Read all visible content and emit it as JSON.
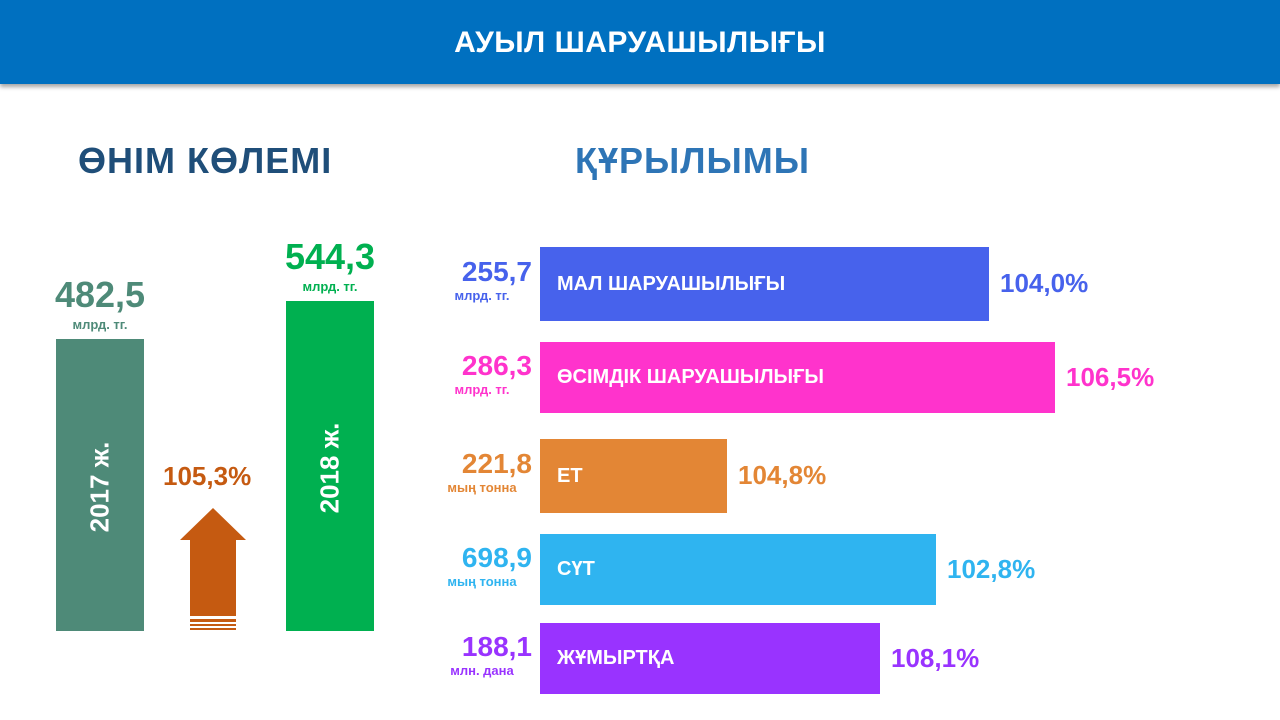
{
  "header": {
    "title": "АУЫЛ ШАРУАШЫЛЫҒЫ"
  },
  "volume": {
    "title": "ӨНІМ КӨЛЕМІ",
    "growth": "105,3%",
    "growth_color": "#c55a11",
    "bars": [
      {
        "year": "2017 ж.",
        "value": 482.5,
        "value_text": "482,5",
        "unit": "млрд. тг.",
        "color": "#4e8a78"
      },
      {
        "year": "2018 ж.",
        "value": 544.3,
        "value_text": "544,3",
        "unit": "млрд. тг.",
        "color": "#00b050"
      }
    ]
  },
  "structure": {
    "title": "ҚҰРЫЛЫМЫ",
    "rows": [
      {
        "label": "МАЛ ШАРУАШЫЛЫҒЫ",
        "value_text": "255,7",
        "unit": "млрд. тг.",
        "percent": "104,0%",
        "bar_fraction": 0.8716,
        "color": "#4762ec"
      },
      {
        "label": "ӨСІМДІК ШАРУАШЫЛЫҒЫ",
        "value_text": "286,3",
        "unit": "млрд. тг.",
        "percent": "106,5%",
        "bar_fraction": 1.0,
        "color": "#ff33cc"
      },
      {
        "label": "ЕТ",
        "value_text": "221,8",
        "unit": "мың тонна",
        "percent": "104,8%",
        "bar_fraction": 0.3623,
        "color": "#e38635"
      },
      {
        "label": "СҮТ",
        "value_text": "698,9",
        "unit": "мың тонна",
        "percent": "102,8%",
        "bar_fraction": 0.7685,
        "color": "#2fb4f0"
      },
      {
        "label": "ЖҰМЫРТҚА",
        "value_text": "188,1",
        "unit": "млн. дана",
        "percent": "108,1%",
        "bar_fraction": 0.6602,
        "color": "#9933ff"
      }
    ]
  },
  "chart_data": [
    {
      "type": "bar",
      "title": "ӨНІМ КӨЛЕМІ",
      "categories": [
        "2017 ж.",
        "2018 ж."
      ],
      "values": [
        482.5,
        544.3
      ],
      "unit": "млрд. тг.",
      "annotation": "105,3%"
    },
    {
      "type": "bar",
      "orientation": "horizontal",
      "title": "ҚҰРЫЛЫМЫ",
      "categories": [
        "МАЛ ШАРУАШЫЛЫҒЫ",
        "ӨСІМДІК ШАРУАШЫЛЫҒЫ",
        "ЕТ",
        "СҮТ",
        "ЖҰМЫРТҚА"
      ],
      "values": [
        255.7,
        286.3,
        221.8,
        698.9,
        188.1
      ],
      "units": [
        "млрд. тг.",
        "млрд. тг.",
        "мың тонна",
        "мың тонна",
        "млн. дана"
      ],
      "growth_percent": [
        104.0,
        106.5,
        104.8,
        102.8,
        108.1
      ]
    }
  ]
}
